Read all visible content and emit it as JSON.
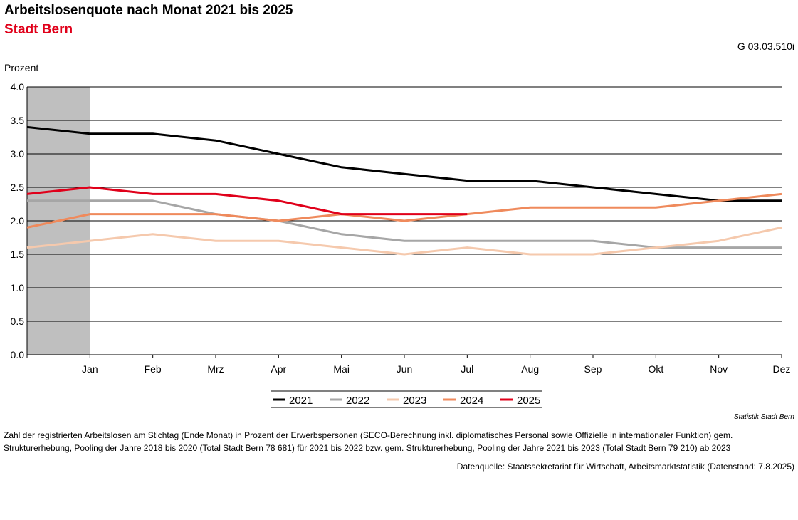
{
  "header": {
    "title": "Arbeitslosenquote nach Monat 2021 bis 2025",
    "subtitle": "Stadt Bern",
    "code": "G 03.03.510i"
  },
  "chart_data": {
    "type": "line",
    "ylabel": "Prozent",
    "ylim": [
      0,
      4
    ],
    "y_ticks": [
      "0.0",
      "0.5",
      "1.0",
      "1.5",
      "2.0",
      "2.5",
      "3.0",
      "3.5",
      "4.0"
    ],
    "categories": [
      "",
      "Jan",
      "Feb",
      "Mrz",
      "Apr",
      "Mai",
      "Jun",
      "Jul",
      "Aug",
      "Sep",
      "Okt",
      "Nov",
      "Dez"
    ],
    "shaded_range": [
      0,
      1
    ],
    "grid": "horizontal",
    "legend": "bottom",
    "series": [
      {
        "name": "2021",
        "color": "#000000",
        "values": [
          3.4,
          3.3,
          3.3,
          3.2,
          3.0,
          2.8,
          2.7,
          2.6,
          2.6,
          2.5,
          2.4,
          2.3,
          2.3
        ]
      },
      {
        "name": "2022",
        "color": "#a6a6a6",
        "values": [
          2.3,
          2.3,
          2.3,
          2.1,
          2.0,
          1.8,
          1.7,
          1.7,
          1.7,
          1.7,
          1.6,
          1.6,
          1.6
        ]
      },
      {
        "name": "2023",
        "color": "#f5c9ad",
        "values": [
          1.6,
          1.7,
          1.8,
          1.7,
          1.7,
          1.6,
          1.5,
          1.6,
          1.5,
          1.5,
          1.6,
          1.7,
          1.9
        ]
      },
      {
        "name": "2024",
        "color": "#ef8a5c",
        "values": [
          1.9,
          2.1,
          2.1,
          2.1,
          2.0,
          2.1,
          2.0,
          2.1,
          2.2,
          2.2,
          2.2,
          2.3,
          2.4
        ]
      },
      {
        "name": "2025",
        "color": "#e0001a",
        "values": [
          2.4,
          2.5,
          2.4,
          2.4,
          2.3,
          2.1,
          2.1,
          2.1,
          null,
          null,
          null,
          null,
          null
        ]
      }
    ]
  },
  "footer": {
    "source_small": "Statistik Stadt Bern",
    "note": "Zahl der registrierten Arbeitslosen am Stichtag (Ende Monat) in Prozent der Erwerbspersonen (SECO-Berechnung inkl. diplomatisches Personal sowie Offizielle in internationaler Funktion) gem. Strukturerhebung, Pooling der Jahre 2018 bis 2020 (Total Stadt Bern 78 681) für 2021 bis 2022 bzw. gem. Strukturerhebung, Pooling der Jahre 2021 bis 2023 (Total Stadt Bern 79 210) ab 2023",
    "datasource": "Datenquelle: Staatssekretariat für Wirtschaft, Arbeitsmarktstatistik (Datenstand: 7.8.2025)"
  }
}
